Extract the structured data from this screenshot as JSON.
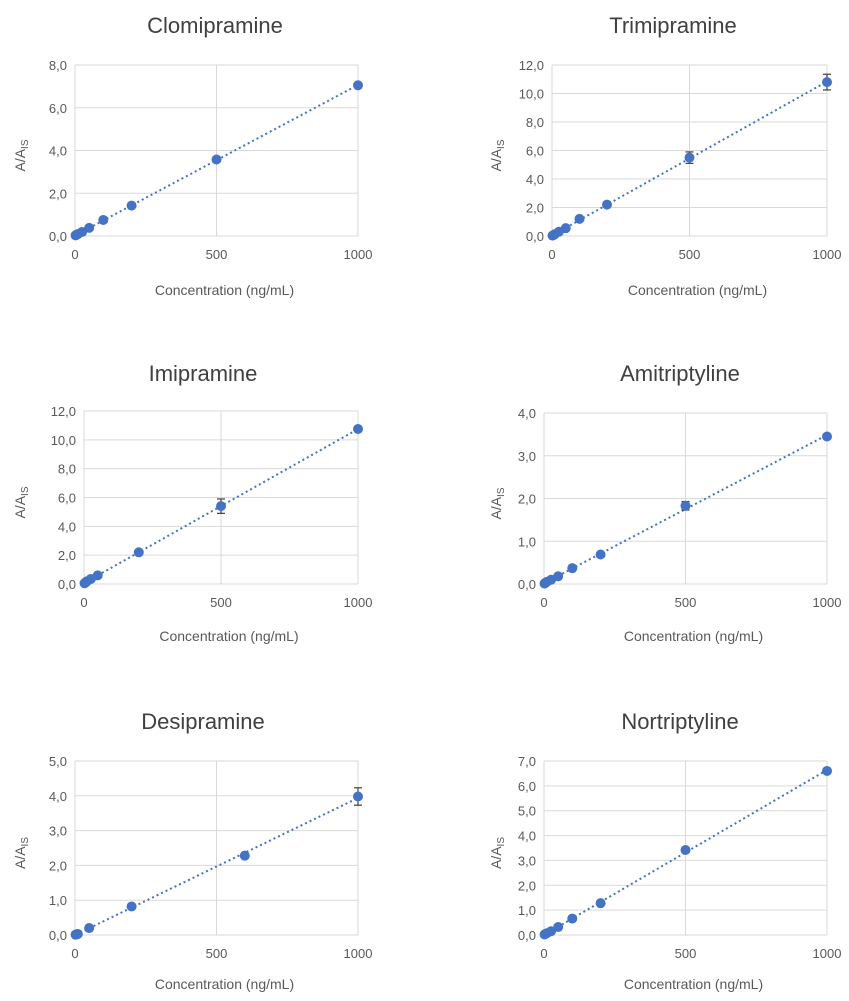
{
  "colors": {
    "marker": "#4472c4",
    "grid": "#d9d9d9",
    "text": "#595959",
    "title": "#404040"
  },
  "chart_data": [
    {
      "type": "scatter",
      "title": "Clomipramine",
      "xlabel": "Concentration (ng/mL)",
      "ylabel": "A/A",
      "ylabel_sub": "IS",
      "xlim": [
        0,
        1000
      ],
      "ylim": [
        0,
        8
      ],
      "xticks": [
        0,
        500,
        1000
      ],
      "xtick_labels": [
        "0",
        "500",
        "1000"
      ],
      "yticks": [
        0,
        2,
        4,
        6,
        8
      ],
      "ytick_labels": [
        "0,0",
        "2,0",
        "4,0",
        "6,0",
        "8,0"
      ],
      "x": [
        2,
        5,
        10,
        25,
        50,
        100,
        200,
        500,
        1000
      ],
      "y": [
        0.03,
        0.05,
        0.09,
        0.19,
        0.38,
        0.75,
        1.42,
        3.58,
        7.05
      ],
      "yerr": [
        0,
        0,
        0,
        0,
        0,
        0,
        0,
        0,
        0.1
      ],
      "trendline": "linear dotted",
      "grid": true,
      "legend": "none"
    },
    {
      "type": "scatter",
      "title": "Trimipramine",
      "xlabel": "Concentration (ng/mL)",
      "ylabel": "A/A",
      "ylabel_sub": "IS",
      "xlim": [
        0,
        1000
      ],
      "ylim": [
        0,
        12
      ],
      "xticks": [
        0,
        500,
        1000
      ],
      "xtick_labels": [
        "0",
        "500",
        "1000"
      ],
      "yticks": [
        0,
        2,
        4,
        6,
        8,
        10,
        12
      ],
      "ytick_labels": [
        "0,0",
        "2,0",
        "4,0",
        "6,0",
        "8,0",
        "10,0",
        "12,0"
      ],
      "x": [
        2,
        5,
        10,
        25,
        50,
        100,
        200,
        500,
        1000
      ],
      "y": [
        0.03,
        0.06,
        0.12,
        0.3,
        0.55,
        1.2,
        2.2,
        5.5,
        10.8
      ],
      "yerr": [
        0,
        0,
        0,
        0,
        0,
        0,
        0,
        0.4,
        0.55
      ],
      "trendline": "linear dotted",
      "grid": true,
      "legend": "none"
    },
    {
      "type": "scatter",
      "title": "Imipramine",
      "xlabel": "Concentration (ng/mL)",
      "ylabel": "A/A",
      "ylabel_sub": "IS",
      "xlim": [
        0,
        1000
      ],
      "ylim": [
        0,
        12
      ],
      "xticks": [
        0,
        500,
        1000
      ],
      "xtick_labels": [
        "0",
        "500",
        "1000"
      ],
      "yticks": [
        0,
        2,
        4,
        6,
        8,
        10,
        12
      ],
      "ytick_labels": [
        "0,0",
        "2,0",
        "4,0",
        "6,0",
        "8,0",
        "10,0",
        "12,0"
      ],
      "x": [
        2,
        5,
        10,
        25,
        50,
        200,
        500,
        1000
      ],
      "y": [
        0.05,
        0.1,
        0.18,
        0.35,
        0.6,
        2.2,
        5.4,
        10.75
      ],
      "yerr": [
        0,
        0,
        0,
        0,
        0,
        0,
        0.5,
        0.15
      ],
      "trendline": "linear dotted",
      "grid": true,
      "legend": "none"
    },
    {
      "type": "scatter",
      "title": "Amitriptyline",
      "xlabel": "Concentration (ng/mL)",
      "ylabel": "A/A",
      "ylabel_sub": "IS",
      "xlim": [
        0,
        1000
      ],
      "ylim": [
        0,
        4
      ],
      "xticks": [
        0,
        500,
        1000
      ],
      "xtick_labels": [
        "0",
        "500",
        "1000"
      ],
      "yticks": [
        0,
        1,
        2,
        3,
        4
      ],
      "ytick_labels": [
        "0,0",
        "1,0",
        "2,0",
        "3,0",
        "4,0"
      ],
      "x": [
        2,
        5,
        10,
        25,
        50,
        100,
        200,
        500,
        1000
      ],
      "y": [
        0.01,
        0.03,
        0.05,
        0.1,
        0.18,
        0.37,
        0.69,
        1.83,
        3.45
      ],
      "yerr": [
        0,
        0,
        0,
        0,
        0,
        0,
        0,
        0.1,
        0.05
      ],
      "trendline": "linear dotted",
      "grid": true,
      "legend": "none"
    },
    {
      "type": "scatter",
      "title": "Desipramine",
      "xlabel": "Concentration (ng/mL)",
      "ylabel": "A/A",
      "ylabel_sub": "IS",
      "xlim": [
        0,
        1000
      ],
      "ylim": [
        0,
        5
      ],
      "xticks": [
        0,
        500,
        1000
      ],
      "xtick_labels": [
        "0",
        "500",
        "1000"
      ],
      "yticks": [
        0,
        1,
        2,
        3,
        4,
        5
      ],
      "ytick_labels": [
        "0,0",
        "1,0",
        "2,0",
        "3,0",
        "4,0",
        "5,0"
      ],
      "x": [
        2,
        5,
        10,
        50,
        200,
        600,
        1000
      ],
      "y": [
        0.01,
        0.02,
        0.03,
        0.2,
        0.82,
        2.28,
        3.98
      ],
      "yerr": [
        0,
        0,
        0,
        0,
        0,
        0,
        0.25
      ],
      "trendline": "linear dotted",
      "grid": true,
      "legend": "none"
    },
    {
      "type": "scatter",
      "title": "Nortriptyline",
      "xlabel": "Concentration (ng/mL)",
      "ylabel": "A/A",
      "ylabel_sub": "IS",
      "xlim": [
        0,
        1000
      ],
      "ylim": [
        0,
        7
      ],
      "xticks": [
        0,
        500,
        1000
      ],
      "xtick_labels": [
        "0",
        "500",
        "1000"
      ],
      "yticks": [
        0,
        1,
        2,
        3,
        4,
        5,
        6,
        7
      ],
      "ytick_labels": [
        "0,0",
        "1,0",
        "2,0",
        "3,0",
        "4,0",
        "5,0",
        "6,0",
        "7,0"
      ],
      "x": [
        2,
        5,
        10,
        25,
        50,
        100,
        200,
        500,
        1000
      ],
      "y": [
        0.02,
        0.04,
        0.07,
        0.15,
        0.32,
        0.66,
        1.28,
        3.42,
        6.6
      ],
      "yerr": [
        0,
        0,
        0,
        0,
        0,
        0,
        0,
        0,
        0.08
      ],
      "trendline": "linear dotted",
      "grid": true,
      "legend": "none"
    }
  ]
}
